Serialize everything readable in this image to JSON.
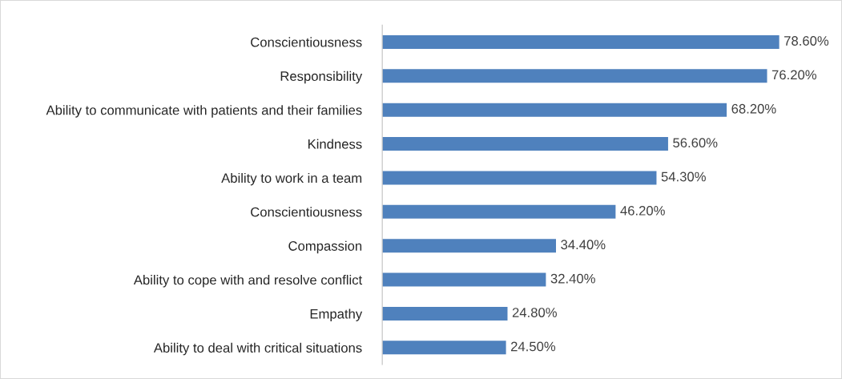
{
  "chart_data": {
    "type": "bar",
    "orientation": "horizontal",
    "categories": [
      "Conscientiousness",
      "Responsibility",
      "Ability to communicate with patients and their families",
      "Kindness",
      "Ability to work in a team",
      "Conscientiousness",
      "Compassion",
      "Ability to cope with and resolve conflict",
      "Empathy",
      "Ability to deal with critical situations"
    ],
    "values": [
      78.6,
      76.2,
      68.2,
      56.6,
      54.3,
      46.2,
      34.4,
      32.4,
      24.8,
      24.5
    ],
    "value_labels": [
      "78.60%",
      "76.20%",
      "68.20%",
      "56.60%",
      "54.30%",
      "46.20%",
      "34.40%",
      "32.40%",
      "24.80%",
      "24.50%"
    ],
    "color": "#4f81bd",
    "tick_labels": "y",
    "grid": false,
    "legend": false
  }
}
